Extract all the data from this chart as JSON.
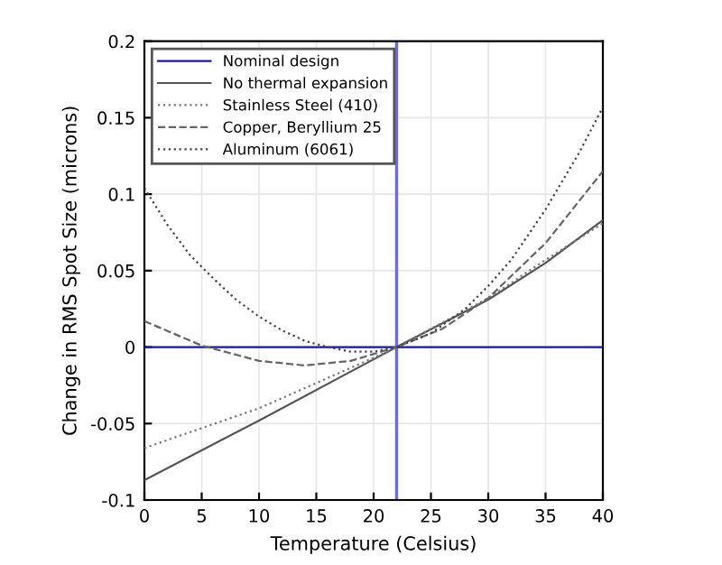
{
  "chart_data": {
    "type": "line",
    "xlabel": "Temperature (Celsius)",
    "ylabel": "Change in RMS Spot Size (microns)",
    "xlim": [
      0,
      40
    ],
    "ylim": [
      -0.1,
      0.2
    ],
    "xticks": [
      0,
      5,
      10,
      15,
      20,
      25,
      30,
      35,
      40
    ],
    "yticks": [
      -0.1,
      -0.05,
      0,
      0.05,
      0.1,
      0.15,
      0.2
    ],
    "grid": true,
    "legend": "top left",
    "marker": "none",
    "ref_lines": [
      {
        "axis": "x",
        "value": 22,
        "color": "#6a6af0"
      }
    ],
    "series": [
      {
        "name": "Nominal design",
        "color": "#1a1a9a",
        "line_style": "solid",
        "x": [
          0,
          40
        ],
        "values": [
          0,
          0
        ]
      },
      {
        "name": "No thermal expansion",
        "color": "#555555",
        "line_style": "solid",
        "x": [
          0,
          10,
          20,
          22,
          30,
          35,
          40
        ],
        "values": [
          -0.087,
          -0.048,
          -0.008,
          0,
          0.031,
          0.055,
          0.083
        ]
      },
      {
        "name": "Stainless Steel (410)",
        "color": "#777777",
        "line_style": "dotted",
        "x": [
          0,
          10,
          20,
          22,
          30,
          35,
          40
        ],
        "values": [
          -0.066,
          -0.04,
          -0.007,
          0,
          0.032,
          0.057,
          0.081
        ]
      },
      {
        "name": "Copper, Beryllium 25",
        "color": "#666666",
        "line_style": "dashed",
        "x": [
          0,
          5,
          10,
          14,
          18,
          22,
          26,
          30,
          35,
          40
        ],
        "values": [
          0.017,
          0.001,
          -0.009,
          -0.012,
          -0.009,
          0,
          0.012,
          0.032,
          0.068,
          0.115
        ]
      },
      {
        "name": "Aluminum (6061)",
        "color": "#444444",
        "line_style": "dotted",
        "x": [
          0,
          2,
          4,
          6,
          8,
          10,
          12,
          14,
          16,
          18,
          20,
          22,
          25,
          28,
          30,
          32,
          35,
          38,
          40
        ],
        "values": [
          0.104,
          0.08,
          0.06,
          0.045,
          0.031,
          0.02,
          0.011,
          0.004,
          0,
          -0.003,
          -0.003,
          0,
          0.009,
          0.025,
          0.04,
          0.057,
          0.09,
          0.128,
          0.157
        ]
      }
    ]
  }
}
